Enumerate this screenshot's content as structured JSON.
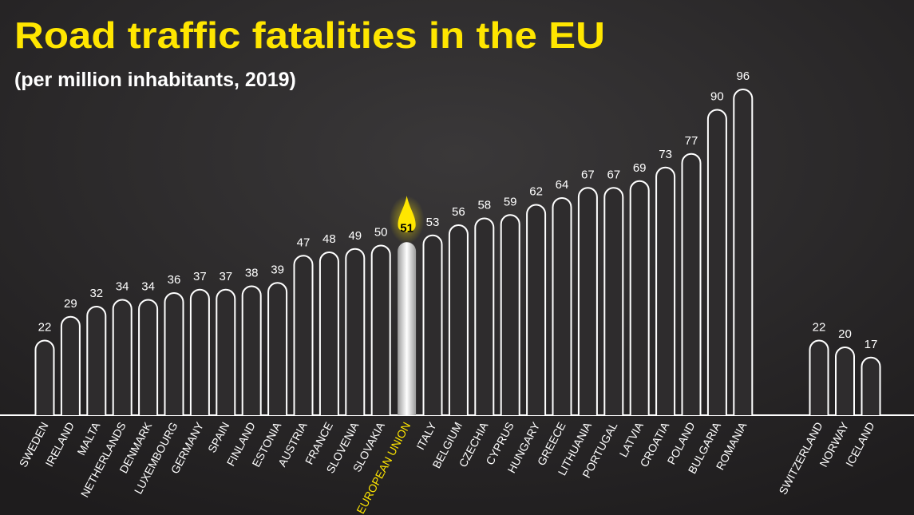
{
  "chart_data": {
    "type": "bar",
    "title": "Road traffic fatalities  in the EU",
    "subtitle": "(per million inhabitants, 2019)",
    "categories": [
      "SWEDEN",
      "IRELAND",
      "MALTA",
      "NETHERLANDS",
      "DENMARK",
      "LUXEMBOURG",
      "GERMANY",
      "SPAIN",
      "FINLAND",
      "ESTONIA",
      "AUSTRIA",
      "FRANCE",
      "SLOVENIA",
      "SLOVAKIA",
      "EUROPEAN UNION",
      "ITALY",
      "BELGIUM",
      "CZECHIA",
      "CYPRUS",
      "HUNGARY",
      "GREECE",
      "LITHUANIA",
      "PORTUGAL",
      "LATVIA",
      "CROATIA",
      "POLAND",
      "BULGARIA",
      "ROMANIA",
      "SWITZERLAND",
      "NORWAY",
      "ICELAND"
    ],
    "values": [
      22,
      29,
      32,
      34,
      34,
      36,
      37,
      37,
      38,
      39,
      47,
      48,
      49,
      50,
      51,
      53,
      56,
      58,
      59,
      62,
      64,
      67,
      67,
      69,
      73,
      77,
      90,
      96,
      22,
      20,
      17
    ],
    "color": "#ffffff",
    "highlight_color": "#ffe600"
  }
}
